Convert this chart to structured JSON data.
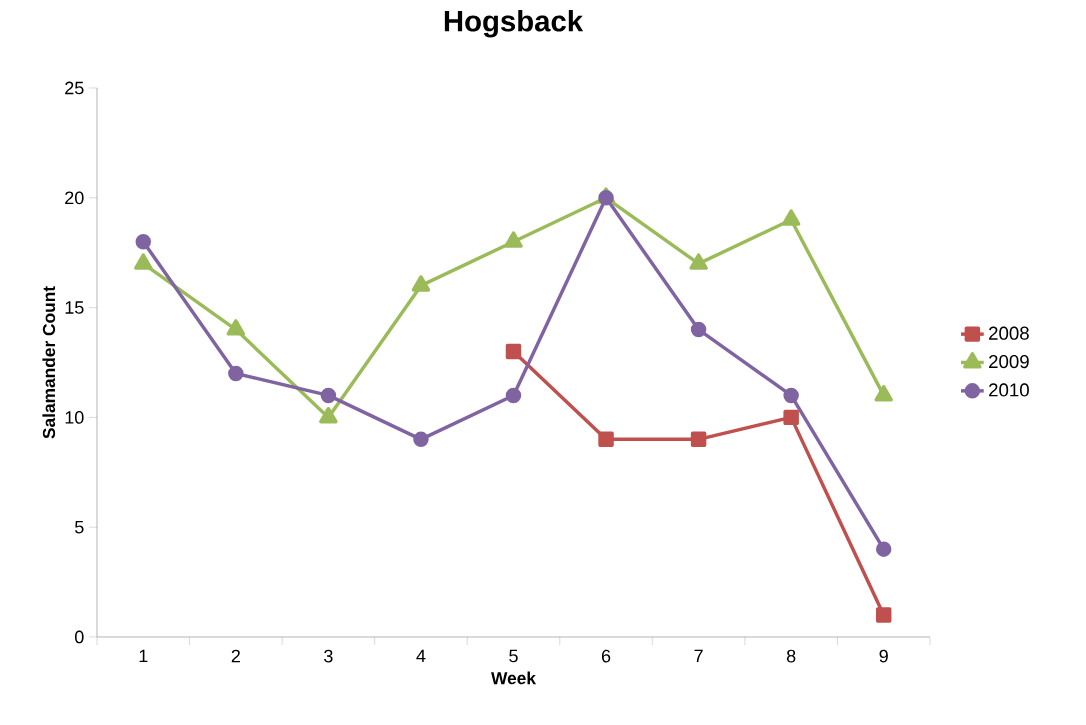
{
  "chart_data": {
    "type": "line",
    "title": "Hogsback",
    "xlabel": "Week",
    "ylabel": "Salamander Count",
    "categories": [
      "1",
      "2",
      "3",
      "4",
      "5",
      "6",
      "7",
      "8",
      "9"
    ],
    "series": [
      {
        "name": "2008",
        "color": "#c0504d",
        "marker": "square",
        "values": [
          null,
          null,
          null,
          null,
          13,
          9,
          9,
          10,
          1
        ]
      },
      {
        "name": "2009",
        "color": "#9bbb59",
        "marker": "triangle",
        "values": [
          17,
          14,
          10,
          16,
          18,
          20,
          17,
          19,
          11
        ]
      },
      {
        "name": "2010",
        "color": "#8064a2",
        "marker": "circle",
        "values": [
          18,
          12,
          11,
          9,
          11,
          20,
          14,
          11,
          4
        ]
      }
    ],
    "ylim": [
      0,
      25
    ],
    "yticks": [
      0,
      5,
      10,
      15,
      20,
      25
    ],
    "grid": false,
    "legend": "right",
    "line_style": "solid"
  }
}
